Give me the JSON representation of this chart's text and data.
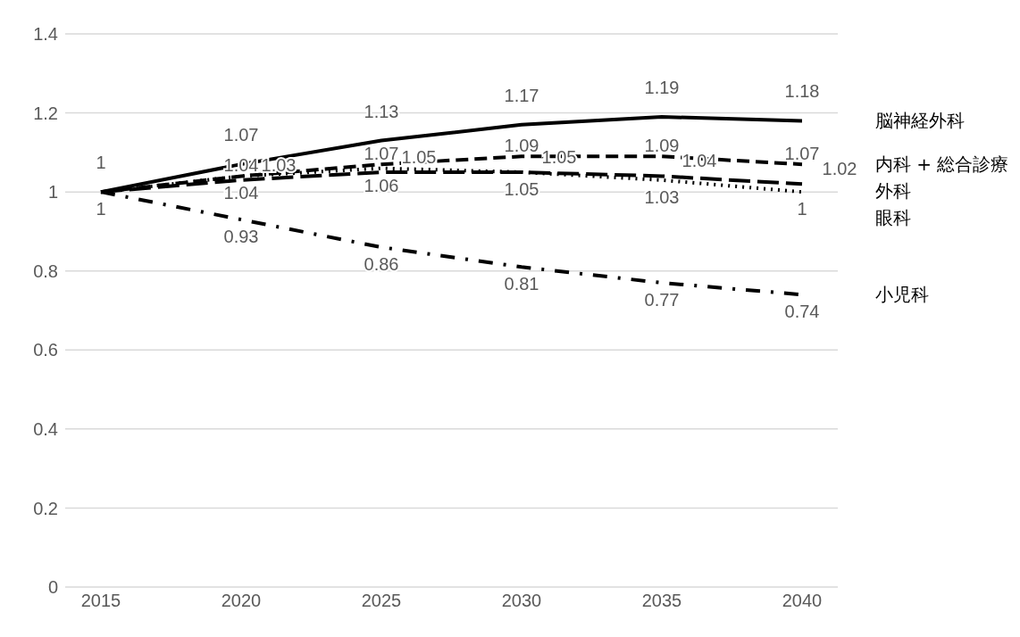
{
  "chart_data": {
    "type": "line",
    "categories": [
      "2015",
      "2020",
      "2025",
      "2030",
      "2035",
      "2040"
    ],
    "series": [
      {
        "name": "脳神経外科",
        "color": "#000000",
        "line_style": "solid",
        "values": [
          1,
          1.07,
          1.13,
          1.17,
          1.19,
          1.18
        ],
        "value_labels": [
          "1",
          "1.07",
          "1.13",
          "1.17",
          "1.19",
          "1.18"
        ]
      },
      {
        "name": "内科 + 総合診療",
        "color": "#000000",
        "line_style": "dashed",
        "values": [
          1,
          1.04,
          1.07,
          1.09,
          1.09,
          1.07
        ],
        "value_labels": [
          null,
          "1.04",
          "1.07",
          "1.09",
          "1.09",
          "1.07"
        ]
      },
      {
        "name": "外科",
        "color": "#000000",
        "line_style": "longdash",
        "values": [
          1,
          1.03,
          1.05,
          1.05,
          1.04,
          1.02
        ],
        "value_labels": [
          null,
          "1.03",
          "1.05",
          "1.05",
          "1.04",
          "1.02"
        ]
      },
      {
        "name": "眼科",
        "color": "#000000",
        "line_style": "dotted",
        "values": [
          1,
          1.04,
          1.06,
          1.05,
          1.03,
          1
        ],
        "value_labels": [
          "1",
          "1.04",
          "1.06",
          "1.05",
          "1.03",
          "1"
        ]
      },
      {
        "name": "小児科",
        "color": "#000000",
        "line_style": "dashdot",
        "values": [
          1,
          0.93,
          0.86,
          0.81,
          0.77,
          0.74
        ],
        "value_labels": [
          null,
          "0.93",
          "0.86",
          "0.81",
          "0.77",
          "0.74"
        ]
      }
    ],
    "ylim": [
      0,
      1.4
    ],
    "yticks": [
      0,
      0.2,
      0.4,
      0.6,
      0.8,
      1,
      1.2,
      1.4
    ],
    "grid": "y",
    "legend": false,
    "data_labels": true,
    "marker": "none"
  }
}
